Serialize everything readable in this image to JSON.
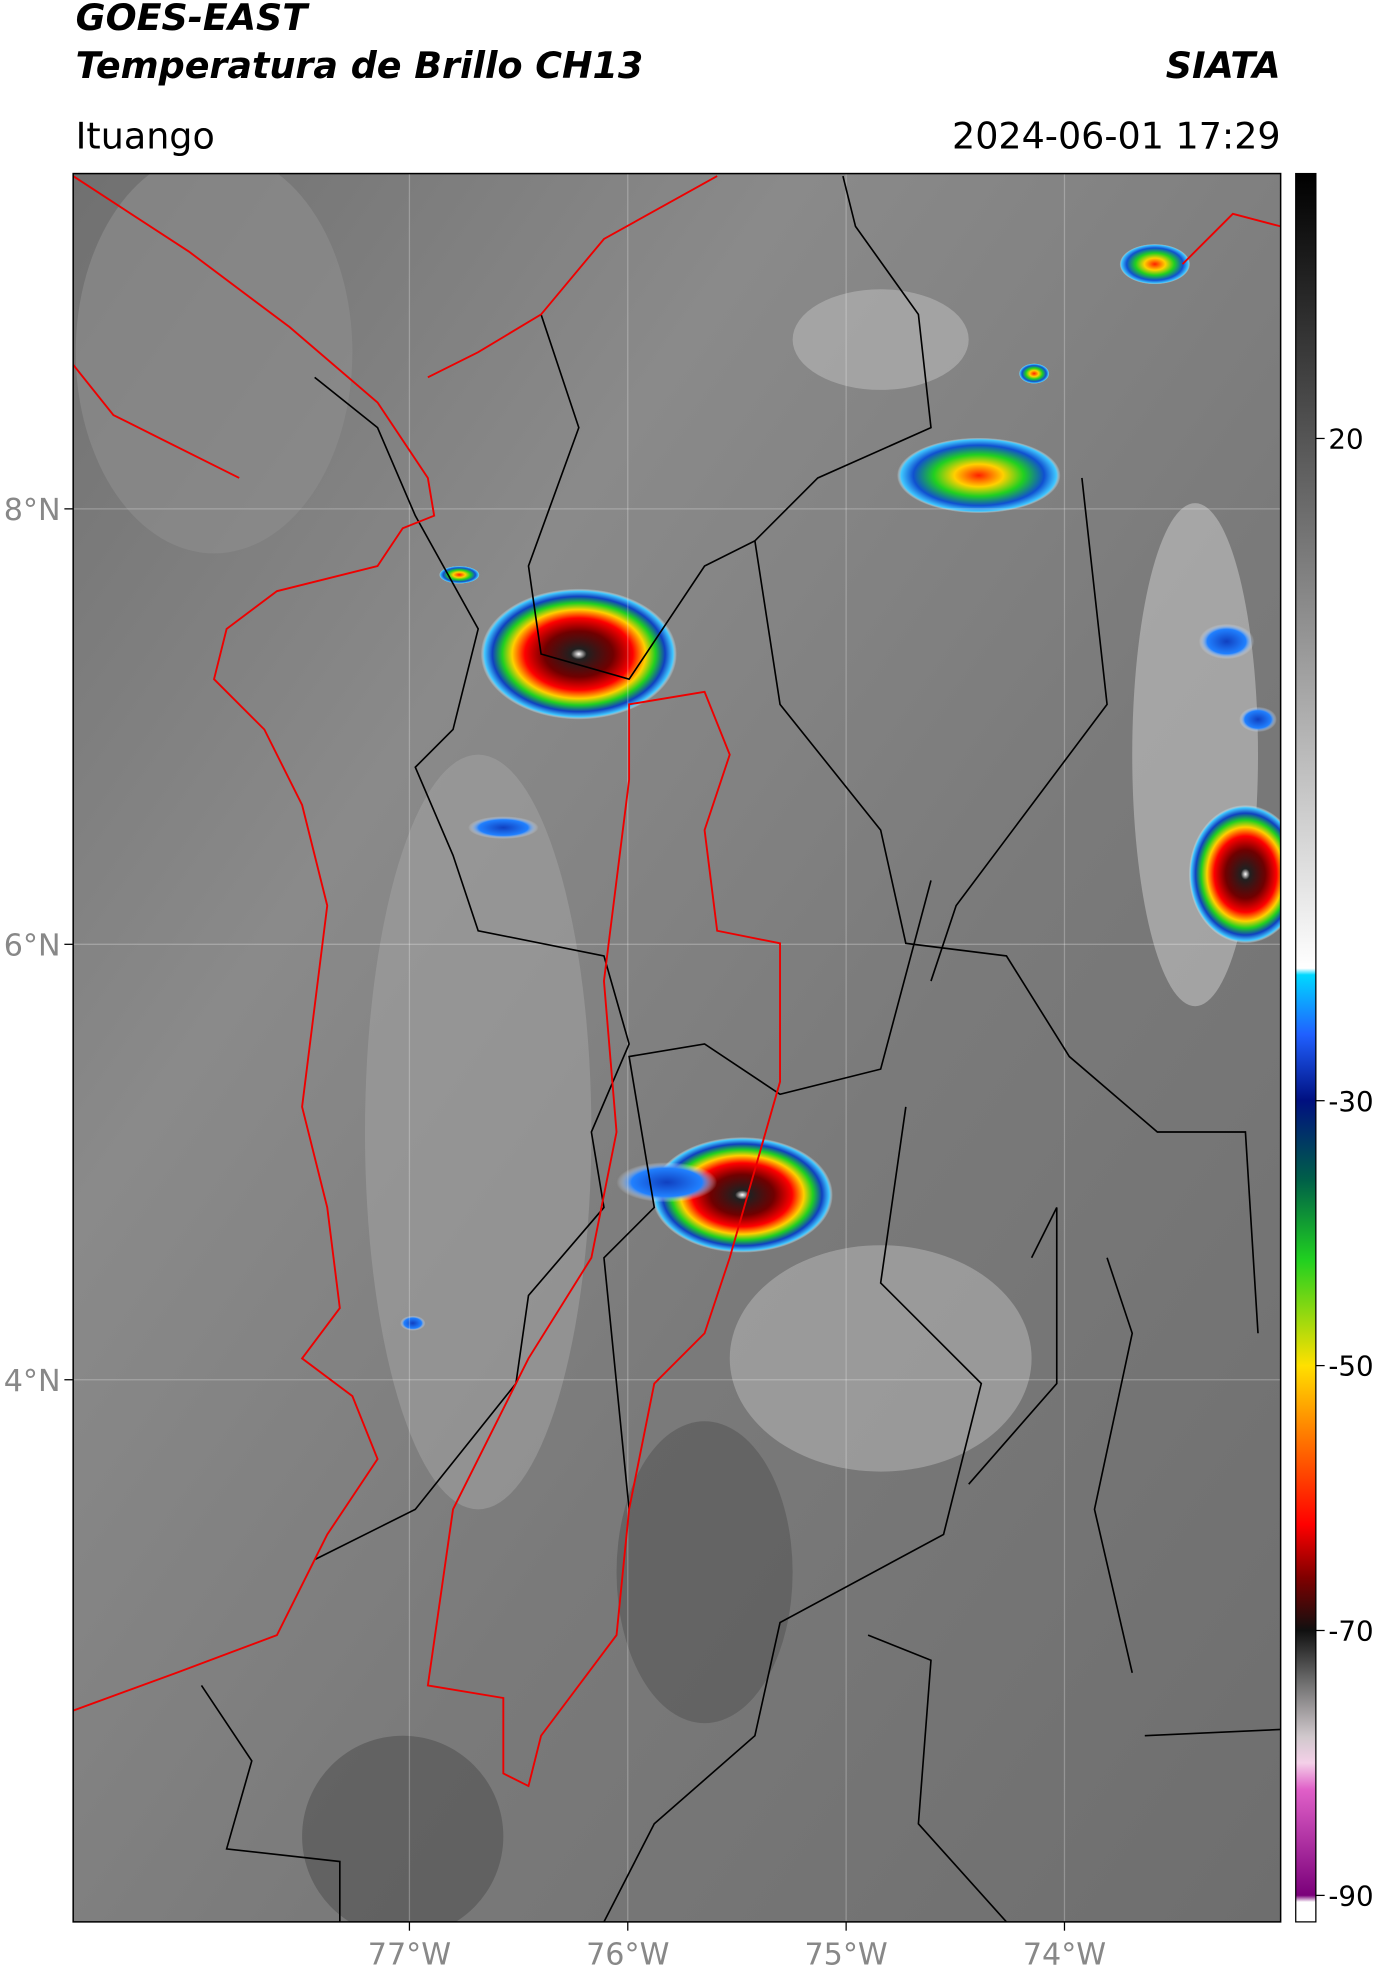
{
  "header": {
    "title_line1": "GOES-EAST",
    "title_line2": "Temperatura de Brillo CH13",
    "agency": "SIATA",
    "location": "Ituango",
    "datetime": "2024-06-01 17:29"
  },
  "map": {
    "lat_lim": [
      1.51,
      9.54
    ],
    "lon_lim": [
      -78.54,
      -73.01
    ],
    "lat_ticks": [
      {
        "value": 8,
        "label": "8°N"
      },
      {
        "value": 6,
        "label": "6°N"
      },
      {
        "value": 4,
        "label": "4°N"
      }
    ],
    "lon_ticks": [
      {
        "value": -77,
        "label": "77°W"
      },
      {
        "value": -76,
        "label": "76°W"
      },
      {
        "value": -75,
        "label": "75°W"
      },
      {
        "value": -74,
        "label": "74°W"
      }
    ]
  },
  "colorbar": {
    "lim": [
      -92,
      40
    ],
    "ticks": [
      20,
      -30,
      -50,
      -70,
      -90
    ],
    "stops": [
      {
        "value": -92,
        "color": "#ffffff"
      },
      {
        "value": -90.5,
        "color": "#ffffff"
      },
      {
        "value": -90,
        "color": "#7a007a"
      },
      {
        "value": -82,
        "color": "#e060c8"
      },
      {
        "value": -80,
        "color": "#f4d0e8"
      },
      {
        "value": -78,
        "color": "#d0c8cc"
      },
      {
        "value": -74,
        "color": "#707070"
      },
      {
        "value": -70,
        "color": "#101010"
      },
      {
        "value": -66,
        "color": "#800000"
      },
      {
        "value": -62,
        "color": "#ff0000"
      },
      {
        "value": -55,
        "color": "#ff8000"
      },
      {
        "value": -50,
        "color": "#ffe000"
      },
      {
        "value": -42,
        "color": "#20d020"
      },
      {
        "value": -36,
        "color": "#006048"
      },
      {
        "value": -30,
        "color": "#001080"
      },
      {
        "value": -25,
        "color": "#2060ff"
      },
      {
        "value": -20.5,
        "color": "#00d8ff"
      },
      {
        "value": -20,
        "color": "#ffffff"
      },
      {
        "value": 40,
        "color": "#000000"
      }
    ]
  }
}
